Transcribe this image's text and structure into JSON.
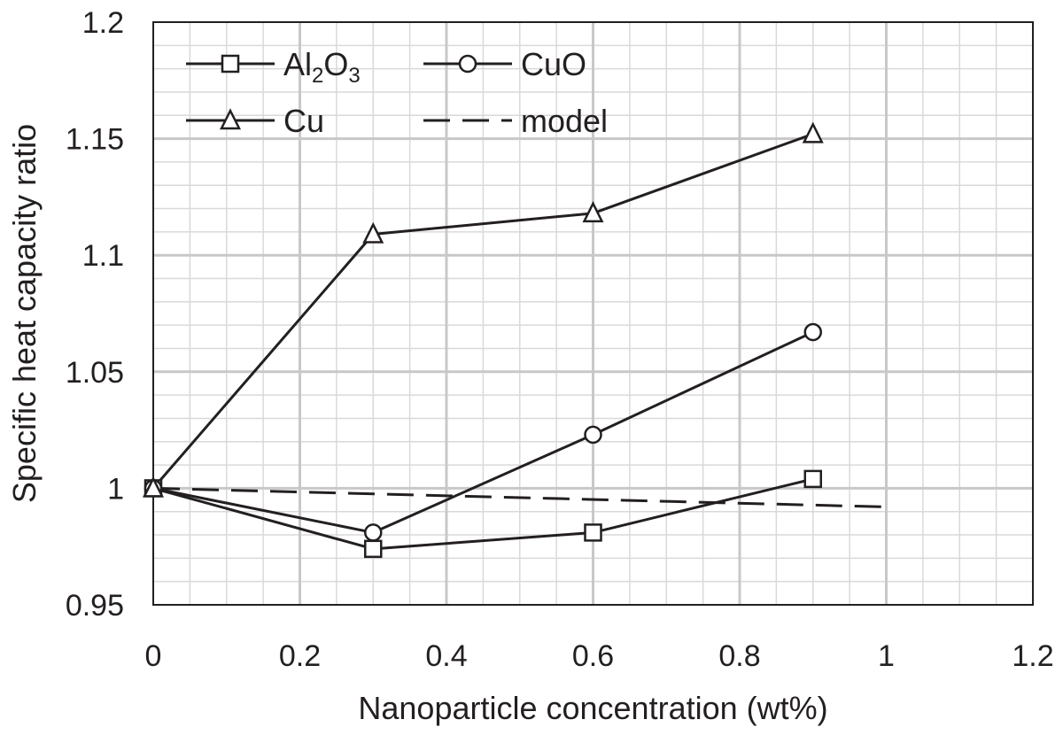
{
  "chart_data": {
    "type": "line",
    "title": "",
    "xlabel": "Nanoparticle concentration (wt%)",
    "ylabel": "Specific heat capacity ratio",
    "xlim": [
      0,
      1.2
    ],
    "ylim": [
      0.95,
      1.2
    ],
    "x_ticks": [
      "0",
      "0.2",
      "0.4",
      "0.6",
      "0.8",
      "1",
      "1.2"
    ],
    "y_ticks": [
      "0.95",
      "1",
      "1.05",
      "1.1",
      "1.15",
      "1.2"
    ],
    "grid": true,
    "legend_position": "top-left",
    "series": [
      {
        "name": "Al2O3",
        "label_main": "Al",
        "label_sub1": "2",
        "label_mid": "O",
        "label_sub2": "3",
        "marker": "square",
        "style": "solid",
        "x": [
          0,
          0.3,
          0.6,
          0.9
        ],
        "y": [
          1.0,
          0.974,
          0.981,
          1.004
        ]
      },
      {
        "name": "CuO",
        "marker": "circle",
        "style": "solid",
        "x": [
          0,
          0.3,
          0.6,
          0.9
        ],
        "y": [
          1.0,
          0.981,
          1.023,
          1.067
        ]
      },
      {
        "name": "Cu",
        "marker": "triangle",
        "style": "solid",
        "x": [
          0,
          0.3,
          0.6,
          0.9
        ],
        "y": [
          1.0,
          1.109,
          1.118,
          1.152
        ]
      },
      {
        "name": "model",
        "marker": "none",
        "style": "dashed",
        "x": [
          0,
          1.0
        ],
        "y": [
          1.0,
          0.992
        ]
      }
    ],
    "colors": {
      "line": "#231f20",
      "grid": "#d9d9d9",
      "marker_fill": "#ffffff"
    }
  }
}
